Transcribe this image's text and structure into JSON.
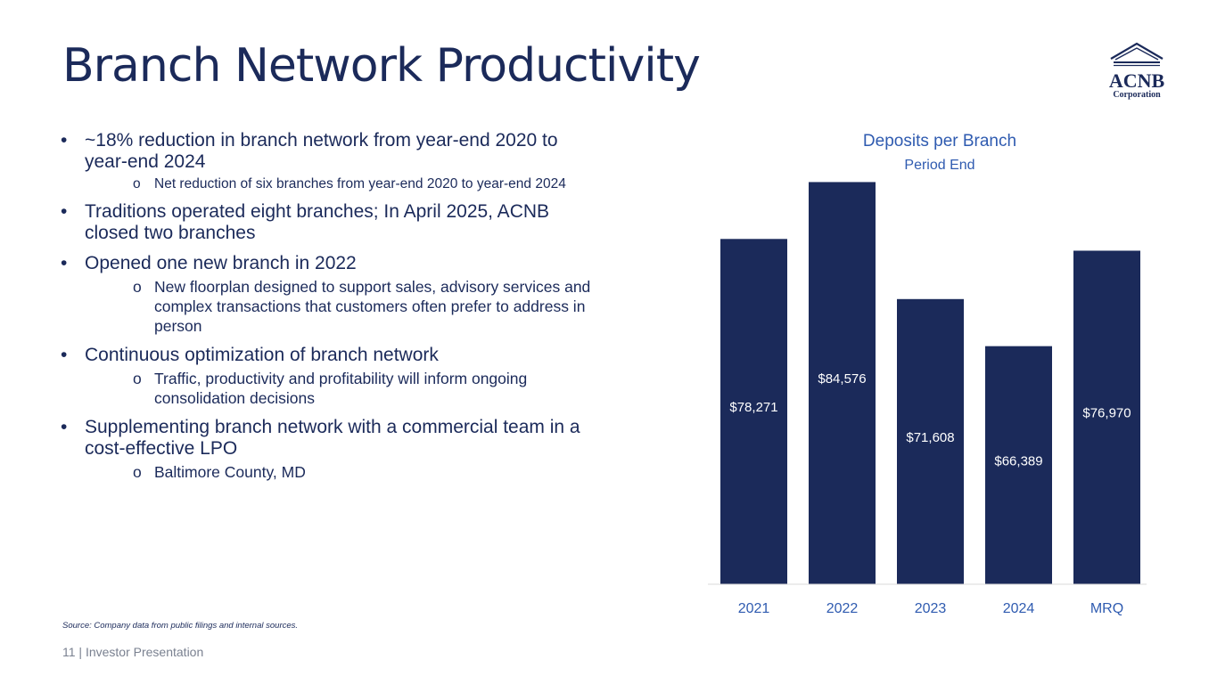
{
  "slide": {
    "title": "Branch Network Productivity",
    "source_note": "Source: Company data from public filings and internal sources.",
    "footer": "11  | Investor Presentation"
  },
  "logo": {
    "name": "ACNB",
    "subtitle": "Corporation"
  },
  "bullets": [
    {
      "text": "~18% reduction in branch network from year-end 2020 to year-end 2024",
      "subs": [
        {
          "text": "Net reduction of six branches from year-end 2020 to year-end 2024",
          "small": true
        }
      ]
    },
    {
      "text": "Traditions operated eight branches; In April 2025, ACNB closed two branches",
      "subs": []
    },
    {
      "text": "Opened one new branch in 2022",
      "subs": [
        {
          "text": "New floorplan designed to support sales, advisory services and complex transactions that customers often prefer to address in person"
        }
      ]
    },
    {
      "text": "Continuous optimization of branch network",
      "subs": [
        {
          "text": "Traffic, productivity and profitability will inform ongoing consolidation decisions"
        }
      ]
    },
    {
      "text": "Supplementing branch network with a commercial team in a cost-effective LPO",
      "subs": [
        {
          "text": "Baltimore County, MD"
        }
      ]
    }
  ],
  "colors": {
    "navy": "#1b2a5a",
    "title_blue": "#2f5bb0",
    "axis": "#d9d9d9"
  },
  "chart_data": {
    "type": "bar",
    "title": "Deposits per Branch",
    "subtitle": "Period End",
    "categories": [
      "2021",
      "2022",
      "2023",
      "2024",
      "MRQ"
    ],
    "values": [
      78271,
      84576,
      71608,
      66389,
      76970
    ],
    "value_labels": [
      "$78,271",
      "$84,576",
      "$71,608",
      "$66,389",
      "$76,970"
    ],
    "ylim": [
      40000,
      86000
    ],
    "grid": false,
    "legend": "none"
  }
}
